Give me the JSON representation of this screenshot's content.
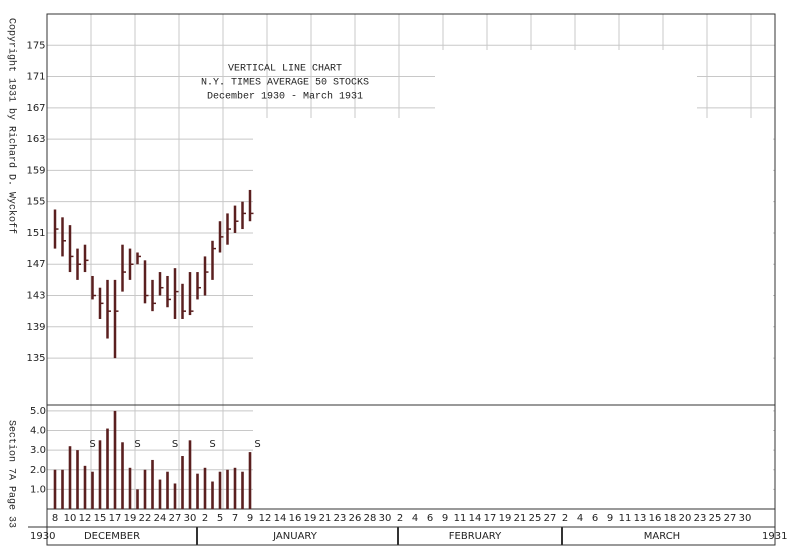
{
  "chart_data": {
    "type": "vertical-line",
    "title": [
      "VERTICAL LINE CHART",
      "N.Y. TIMES AVERAGE 50 STOCKS",
      "December 1930 - March 1931"
    ],
    "copyright": "Copyright 1931 by Richard D. Wyckoff",
    "section": "Section 7A Page 33",
    "year_start": "1930",
    "year_end": "1931",
    "months": [
      "DECEMBER",
      "JANUARY",
      "FEBRUARY",
      "MARCH"
    ],
    "categories": [
      "8",
      null,
      "10",
      null,
      "12",
      null,
      "15",
      null,
      "17",
      null,
      "19",
      null,
      "22",
      null,
      "24",
      null,
      "27",
      null,
      "30",
      null,
      "2",
      null,
      "5",
      null,
      "7",
      null,
      "9",
      null,
      "12",
      null,
      "14",
      null,
      "16",
      null,
      "19",
      null,
      "21",
      null,
      "23",
      null,
      "26",
      null,
      "28",
      null,
      "30",
      null,
      "2",
      null,
      "4",
      null,
      "6",
      null,
      "9",
      null,
      "11",
      null,
      "14",
      null,
      "17",
      null,
      "19",
      null,
      "21",
      null,
      "25",
      null,
      "27",
      null,
      "2",
      null,
      "4",
      null,
      "6",
      null,
      "9",
      null,
      "11",
      null,
      "13",
      null,
      "16",
      null,
      "18",
      null,
      "20",
      null,
      "23",
      null,
      "25",
      null,
      "27",
      null,
      "30"
    ],
    "high": [
      154,
      153,
      152,
      149,
      149.5,
      145.5,
      144,
      145,
      145,
      149.5,
      149,
      148.5,
      147.5,
      145,
      146,
      145.5,
      146.5,
      144.5,
      146,
      146,
      148,
      150,
      152.5,
      153.5,
      154.5,
      155,
      156.5,
      null,
      null,
      null,
      null,
      null,
      null,
      null,
      null,
      null,
      null,
      null,
      null,
      null,
      null,
      null,
      null,
      null,
      null,
      null,
      null,
      null,
      null,
      null,
      null,
      null,
      null,
      null,
      null,
      null,
      null,
      null,
      null,
      null,
      null,
      null,
      null,
      null,
      null,
      null,
      null,
      null,
      null,
      null,
      null,
      null,
      null,
      null,
      null,
      null,
      null,
      null,
      null,
      null,
      null,
      null,
      null,
      null,
      null,
      null,
      null,
      null,
      null,
      null,
      null,
      null,
      null
    ],
    "low": [
      149,
      148,
      146,
      145,
      146,
      142.5,
      140,
      137.5,
      135,
      143.5,
      145,
      147,
      142,
      141,
      143,
      141.5,
      140,
      140,
      140.5,
      142.5,
      143,
      145,
      148.5,
      149.5,
      151,
      151.5,
      152.5,
      null,
      null,
      null,
      null,
      null,
      null,
      null,
      null,
      null,
      null,
      null,
      null,
      null,
      null,
      null,
      null,
      null,
      null,
      null,
      null,
      null,
      null,
      null,
      null,
      null,
      null,
      null,
      null,
      null,
      null,
      null,
      null,
      null,
      null,
      null,
      null,
      null,
      null,
      null,
      null,
      null,
      null,
      null,
      null,
      null,
      null,
      null,
      null,
      null,
      null,
      null,
      null,
      null,
      null,
      null,
      null,
      null,
      null,
      null,
      null,
      null,
      null,
      null,
      null,
      null,
      null
    ],
    "close": [
      151.5,
      150,
      148,
      147,
      147.5,
      143,
      142,
      141,
      141,
      146,
      147,
      148,
      143,
      142,
      144,
      142.5,
      143.5,
      141,
      141,
      144,
      146,
      149,
      150.5,
      151.5,
      152.5,
      153.5,
      153.5,
      null,
      null,
      null,
      null,
      null,
      null,
      null,
      null,
      null,
      null,
      null,
      null,
      null,
      null,
      null,
      null,
      null,
      null,
      null,
      null,
      null,
      null,
      null,
      null,
      null,
      null,
      null,
      null,
      null,
      null,
      null,
      null,
      null,
      null,
      null,
      null,
      null,
      null,
      null,
      null,
      null,
      null,
      null,
      null,
      null,
      null,
      null,
      null,
      null,
      null,
      null,
      null,
      null,
      null,
      null,
      null,
      null,
      null,
      null,
      null,
      null,
      null,
      null,
      null,
      null,
      null
    ],
    "color": "#5a1f1f",
    "ylim": [
      129,
      179
    ],
    "yticks": [
      135,
      139,
      143,
      147,
      151,
      155,
      159,
      163,
      167,
      171,
      175
    ],
    "grid": true,
    "volume": {
      "values": [
        2.0,
        2.0,
        3.2,
        3.0,
        2.2,
        1.9,
        3.5,
        4.1,
        5.0,
        3.4,
        2.1,
        1.0,
        2.0,
        2.5,
        1.5,
        1.9,
        1.3,
        2.7,
        3.5,
        1.8,
        2.1,
        1.4,
        1.9,
        2.0,
        2.1,
        1.9,
        2.9,
        null,
        null,
        null,
        null,
        null,
        null,
        null,
        null,
        null,
        null,
        null,
        null,
        null,
        null,
        null,
        null,
        null,
        null,
        null,
        null,
        null,
        null,
        null,
        null,
        null,
        null,
        null,
        null,
        null,
        null,
        null,
        null,
        null,
        null,
        null,
        null,
        null,
        null,
        null,
        null,
        null,
        null,
        null,
        null,
        null,
        null,
        null,
        null,
        null,
        null,
        null,
        null,
        null,
        null,
        null,
        null,
        null,
        null,
        null,
        null,
        null,
        null,
        null,
        null,
        null,
        null
      ],
      "ylim": [
        0,
        5.3
      ],
      "yticks": [
        {
          "value": 1,
          "label": "1.0"
        },
        {
          "value": 2,
          "label": "2.0"
        },
        {
          "value": 3,
          "label": "3.0"
        },
        {
          "value": 4,
          "label": "4.0"
        },
        {
          "value": 5,
          "label": "5.0"
        }
      ],
      "annotations": [
        {
          "text": "S",
          "category": 5
        },
        {
          "text": "S",
          "category": 11
        },
        {
          "text": "S",
          "category": 16
        },
        {
          "text": "S",
          "category": 21
        },
        {
          "text": "S",
          "category": 27
        }
      ]
    }
  }
}
